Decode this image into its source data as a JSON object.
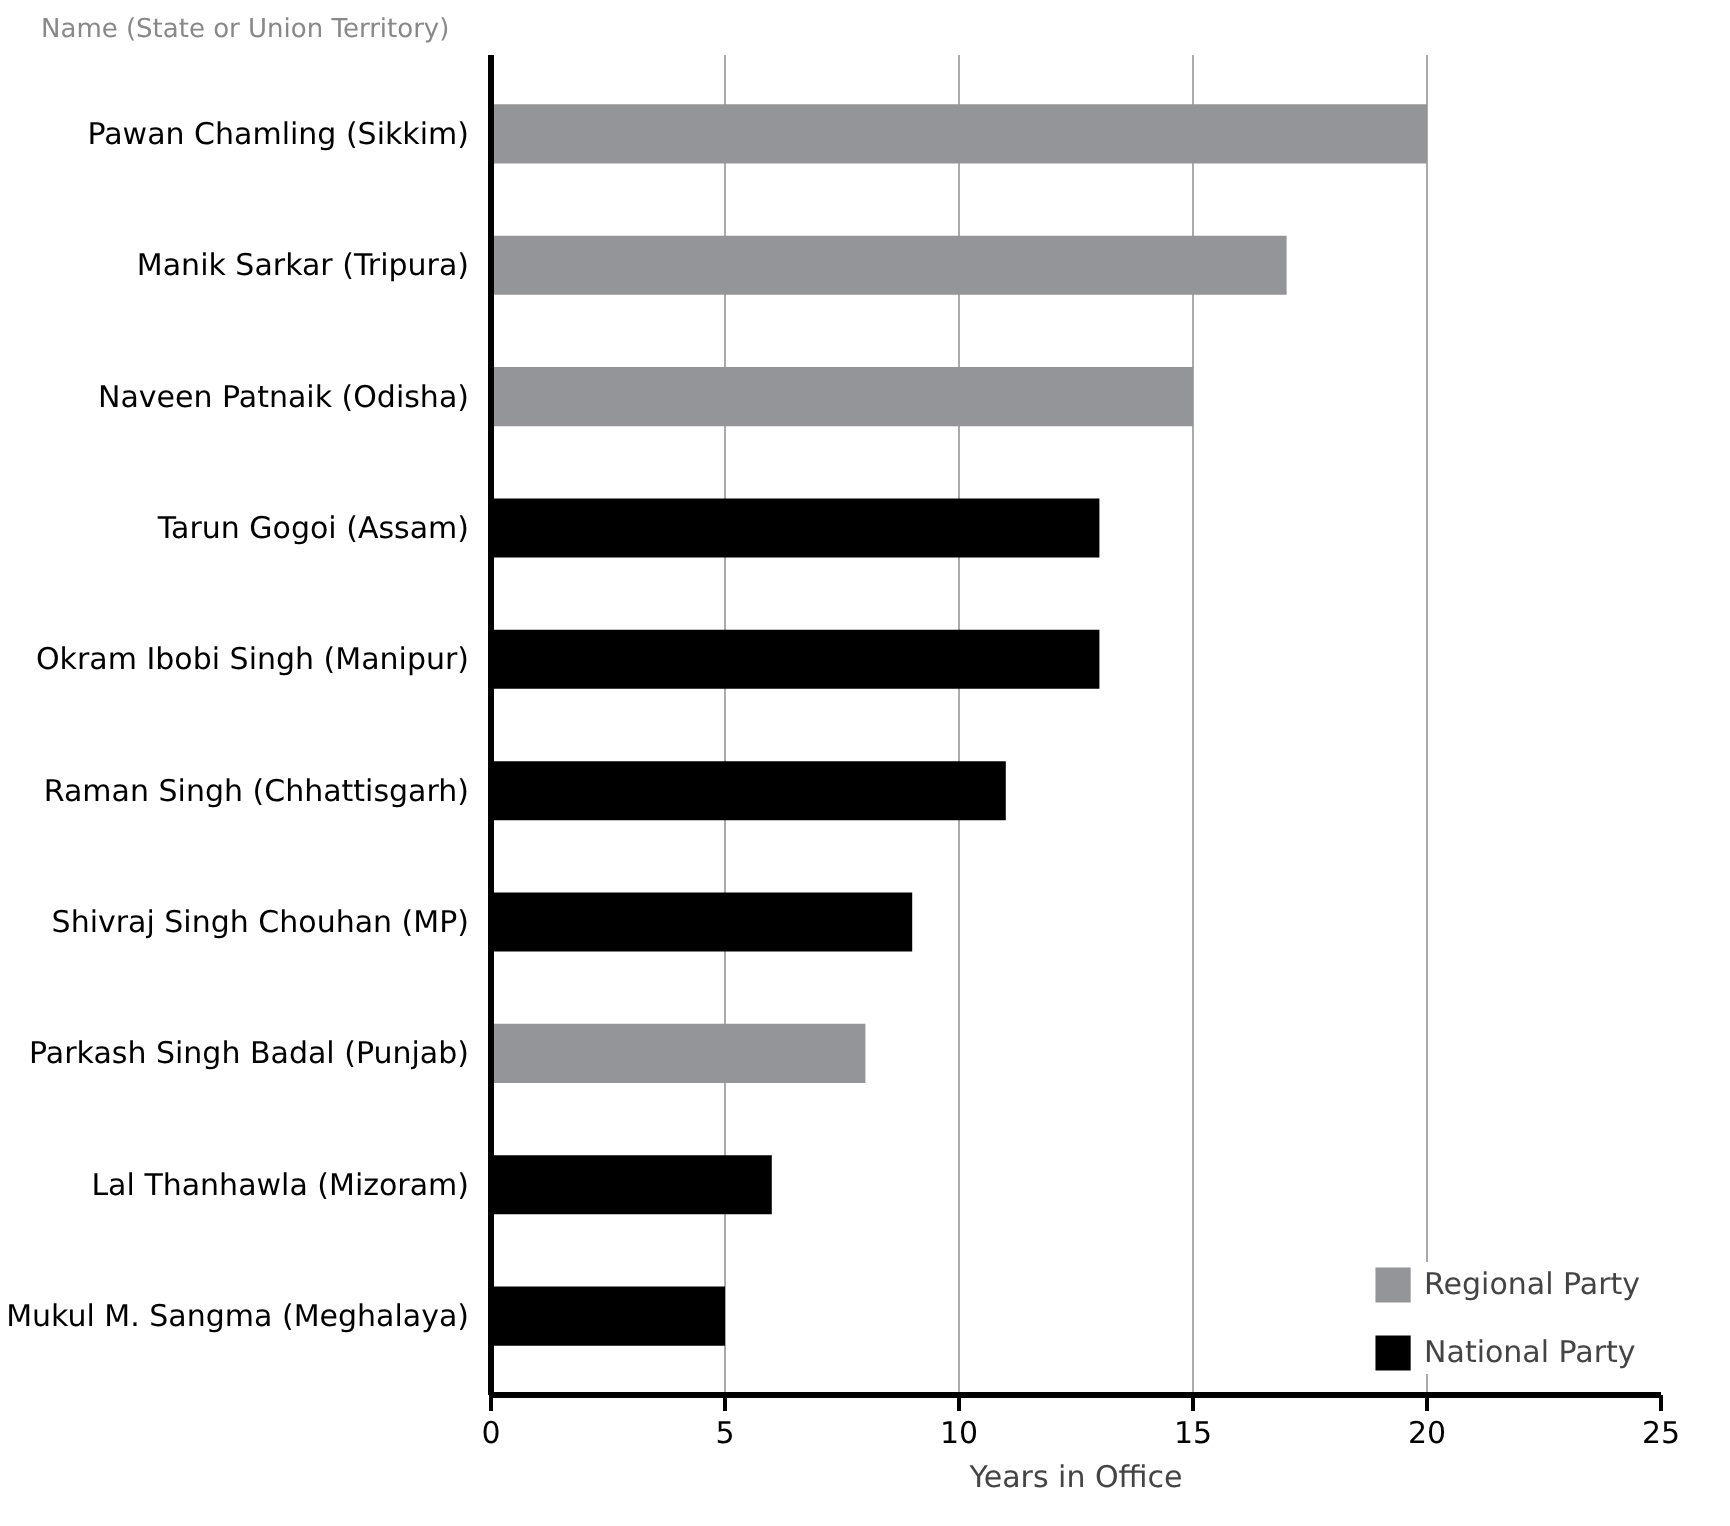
{
  "chart_data": {
    "type": "bar",
    "orientation": "horizontal",
    "ylabel": "Name (State or Union Territory)",
    "xlabel": "Years in Office",
    "categories": [
      "Pawan Chamling (Sikkim)",
      "Manik Sarkar (Tripura)",
      "Naveen Patnaik (Odisha)",
      "Tarun Gogoi (Assam)",
      "Okram Ibobi Singh (Manipur)",
      "Raman Singh (Chhattisgarh)",
      "Shivraj Singh Chouhan (MP)",
      "Parkash Singh Badal (Punjab)",
      "Lal Thanhawla (Mizoram)",
      "Mukul M. Sangma (Meghalaya)"
    ],
    "series": [
      {
        "name": "Regional Party",
        "color": "#939598",
        "values": [
          20,
          17,
          15,
          null,
          null,
          null,
          null,
          8,
          null,
          null
        ]
      },
      {
        "name": "National Party",
        "color": "#000000",
        "values": [
          null,
          null,
          null,
          13,
          13,
          11,
          9,
          null,
          6,
          5
        ]
      }
    ],
    "xlim": [
      0,
      25
    ],
    "xticks": [
      0,
      5,
      10,
      15,
      20,
      25
    ],
    "grid": "x",
    "legend": "bottom right"
  }
}
